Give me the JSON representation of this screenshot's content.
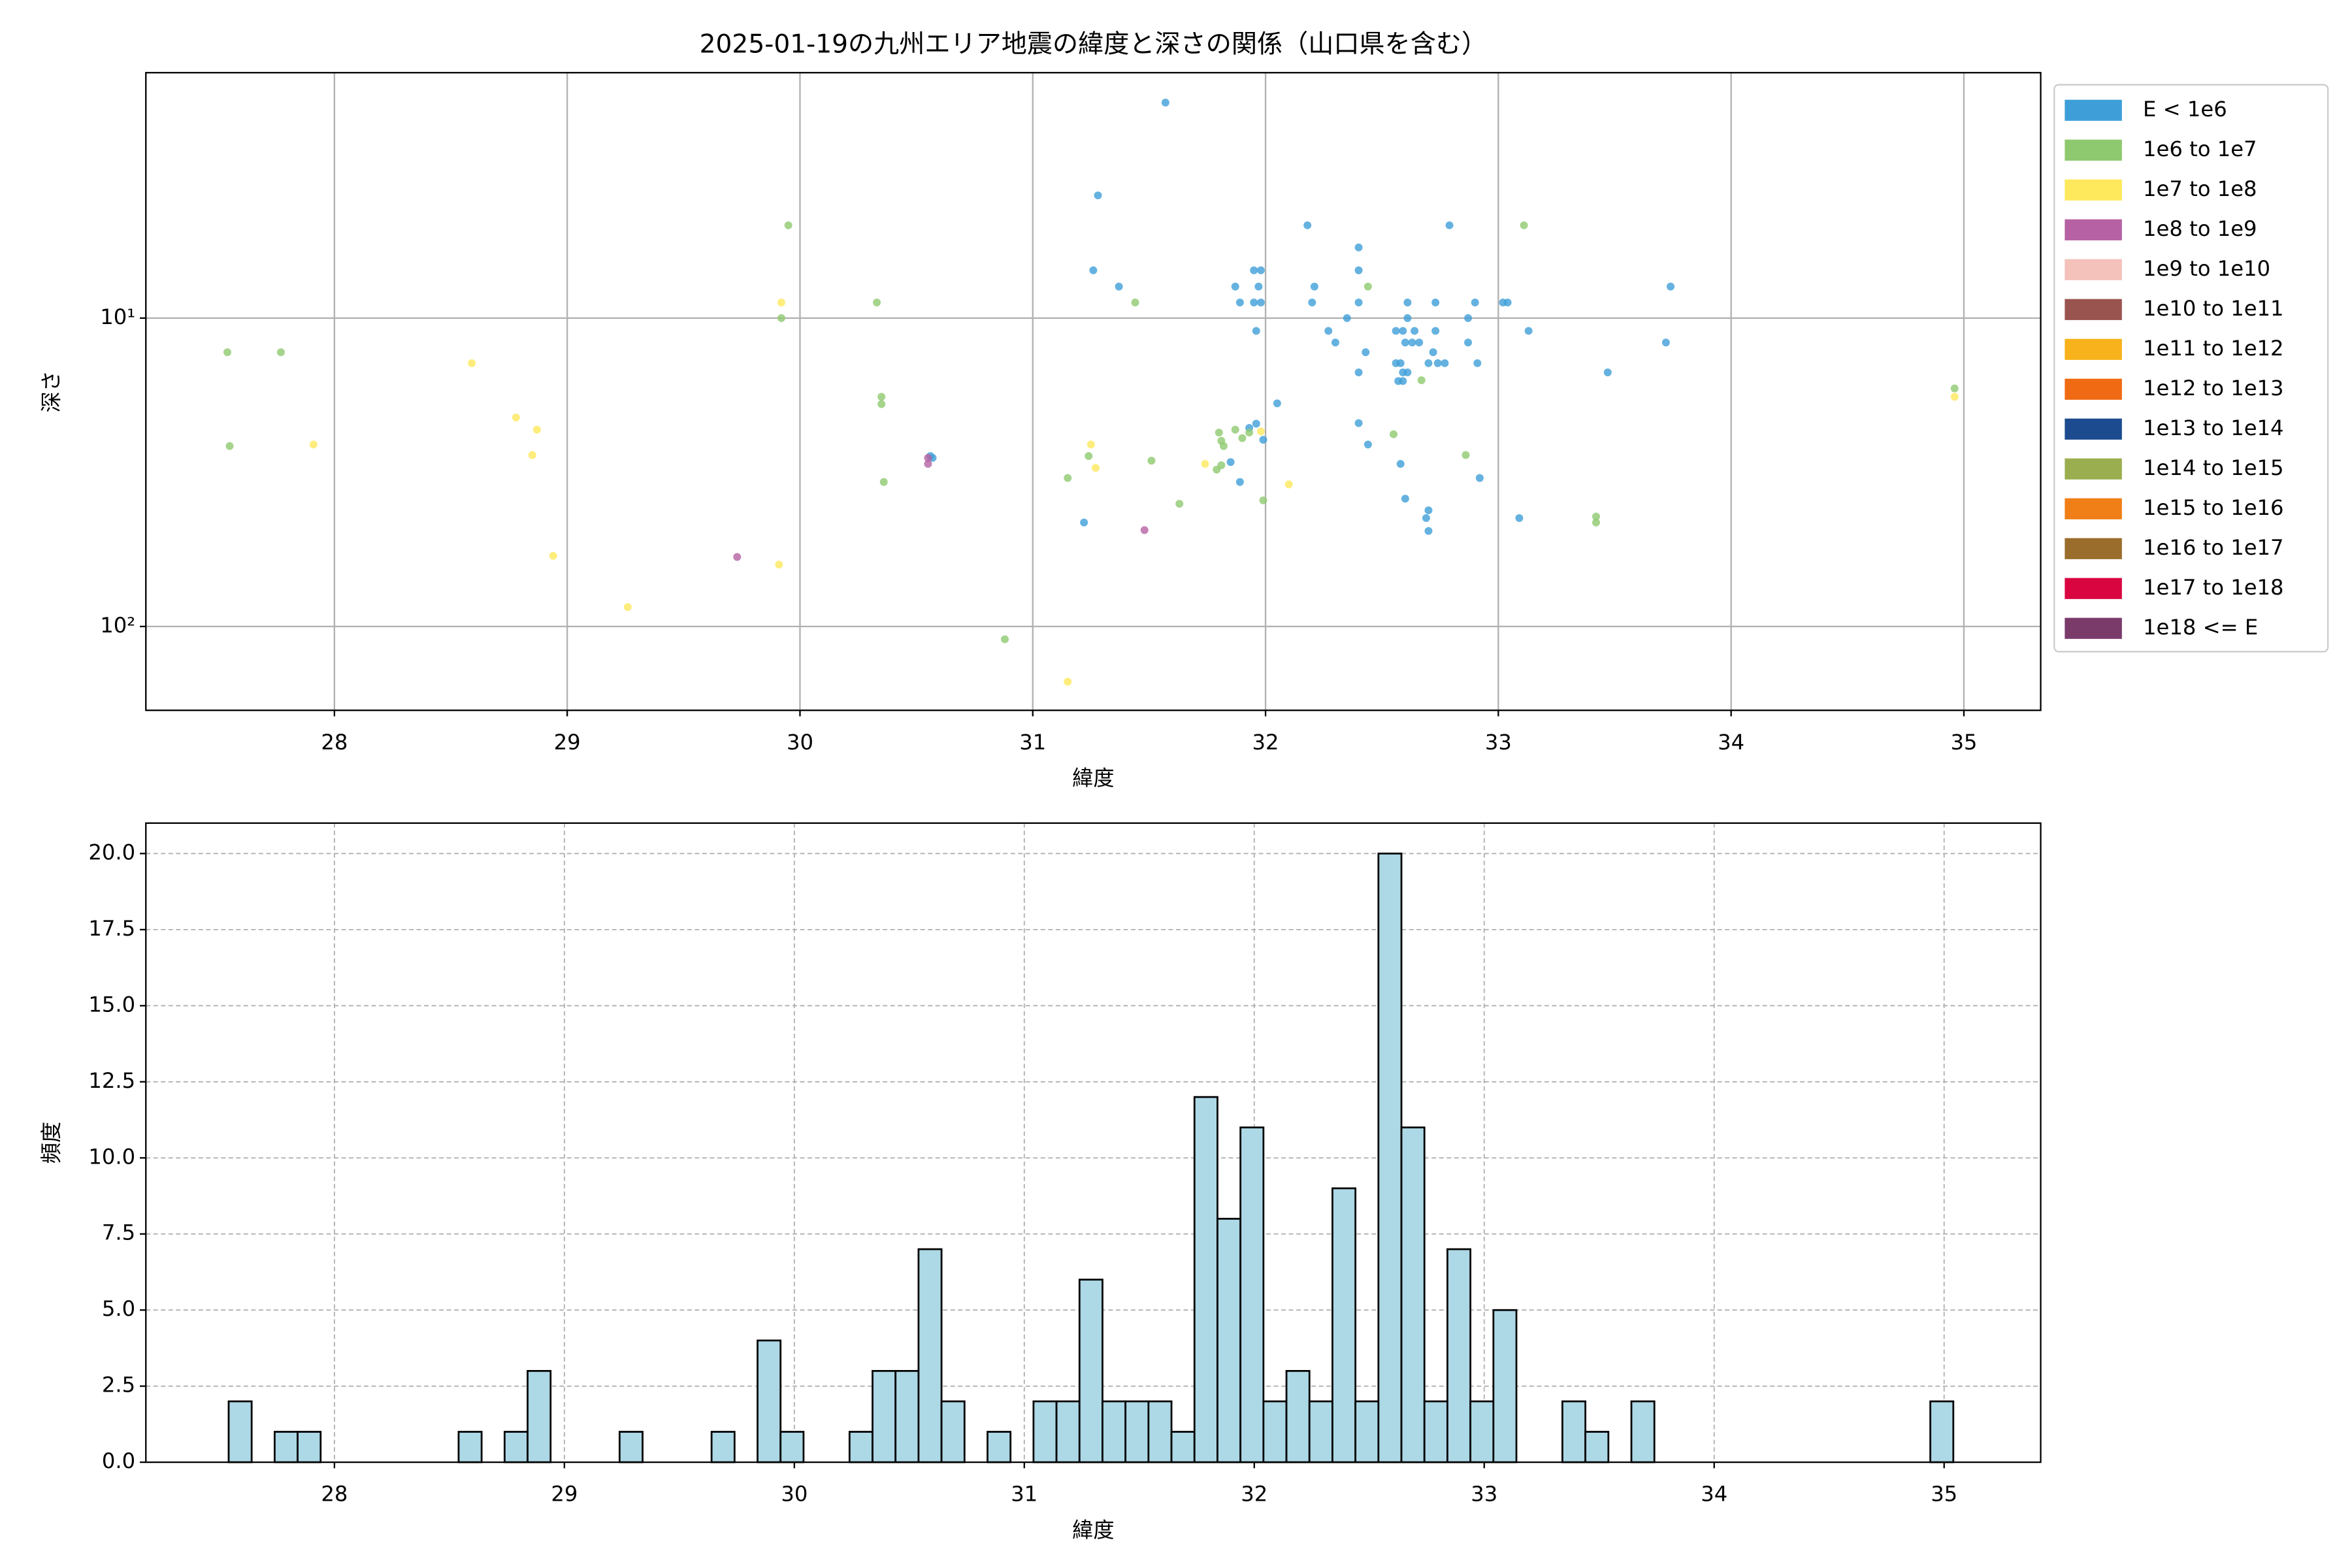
{
  "chart_data": [
    {
      "type": "scatter",
      "title": "2025-01-19の九州エリア地震の緯度と深さの関係（山口県を含む）",
      "xlabel": "緯度",
      "ylabel": "深さ",
      "xlim": [
        27.19,
        35.33
      ],
      "xticks": [
        28,
        29,
        30,
        31,
        32,
        33,
        34,
        35
      ],
      "yscale": "log",
      "ylim": [
        187,
        1.6
      ],
      "yticks": [
        {
          "value": 10,
          "label": "10¹"
        },
        {
          "value": 100,
          "label": "10²"
        }
      ],
      "grid": true,
      "legend": "outside right",
      "series": [
        {
          "name": "E < 1e6",
          "color": "#3e9fd8",
          "x": [
            31.57,
            31.28,
            31.26,
            31.37,
            32.18,
            32.4,
            32.4,
            32.21,
            32.79,
            33.74,
            31.95,
            31.98,
            31.87,
            31.97,
            31.89,
            31.95,
            31.98,
            32.2,
            32.4,
            32.61,
            32.73,
            32.9,
            33.02,
            33.04,
            32.35,
            32.61,
            32.87,
            31.96,
            32.27,
            32.56,
            32.59,
            32.64,
            32.73,
            33.13,
            32.3,
            32.6,
            32.63,
            32.66,
            32.87,
            32.43,
            32.72,
            33.72,
            32.56,
            32.58,
            32.7,
            32.74,
            32.77,
            32.91,
            32.4,
            32.59,
            32.61,
            32.57,
            32.59,
            33.47,
            32.05,
            31.96,
            32.4,
            32.44,
            32.58,
            32.92,
            31.89,
            32.6,
            32.7,
            32.69,
            31.22,
            33.09,
            32.7,
            30.56,
            30.57,
            31.99,
            31.85,
            31.93
          ],
          "y": [
            2.0,
            4.0,
            7.0,
            7.9,
            5.0,
            5.9,
            7.0,
            7.9,
            5.0,
            7.9,
            7.0,
            7.0,
            7.9,
            7.9,
            8.9,
            8.9,
            8.9,
            8.9,
            8.9,
            8.9,
            8.9,
            8.9,
            8.9,
            8.9,
            10,
            10,
            10,
            11,
            11,
            11,
            11,
            11,
            11,
            11,
            12,
            12,
            12,
            12,
            12,
            12.9,
            12.9,
            12,
            14,
            14,
            14,
            14,
            14,
            14,
            15,
            15,
            15,
            16,
            16,
            15,
            18.9,
            22,
            21.9,
            25.7,
            29.7,
            33,
            34,
            38.5,
            42,
            44.5,
            46,
            44.5,
            49,
            28,
            28.4,
            24.8,
            29.3,
            22.7
          ]
        },
        {
          "name": "1e6 to 1e7",
          "color": "#8fc96f",
          "x": [
            27.54,
            27.55,
            27.77,
            29.95,
            29.92,
            30.33,
            30.35,
            30.35,
            30.36,
            30.88,
            31.15,
            31.24,
            31.44,
            31.51,
            31.63,
            31.79,
            31.8,
            31.81,
            31.82,
            31.81,
            31.87,
            31.9,
            31.93,
            31.99,
            32.44,
            32.55,
            32.67,
            32.86,
            33.11,
            33.42,
            33.42,
            34.96
          ],
          "y": [
            12.9,
            26,
            12.9,
            5.0,
            10,
            8.9,
            18,
            19,
            34,
            110,
            33,
            28,
            8.9,
            29,
            40,
            31,
            23.5,
            25,
            26,
            30,
            23,
            24.5,
            23.5,
            39,
            7.9,
            23.8,
            15.9,
            27.8,
            5.0,
            44,
            46,
            16.9
          ]
        },
        {
          "name": "1e7 to 1e8",
          "color": "#fee95c",
          "x": [
            27.91,
            28.59,
            28.78,
            28.87,
            28.85,
            28.94,
            29.26,
            29.92,
            29.91,
            31.15,
            31.25,
            31.27,
            31.74,
            31.98,
            32.1,
            34.96
          ],
          "y": [
            25.7,
            14.0,
            21,
            23,
            27.8,
            59,
            86.5,
            8.9,
            63,
            151,
            25.7,
            30.6,
            29.7,
            23.3,
            34.6,
            18
          ]
        },
        {
          "name": "1e8 to 1e9",
          "color": "#b561a3",
          "x": [
            29.73,
            30.55,
            30.55,
            31.48
          ],
          "y": [
            59.5,
            29.7,
            28.4,
            48.7
          ]
        },
        {
          "name": "1e9 to 1e10",
          "color": "#f5c1bb",
          "x": [],
          "y": []
        },
        {
          "name": "1e10 to 1e11",
          "color": "#9a544f",
          "x": [],
          "y": []
        },
        {
          "name": "1e11 to 1e12",
          "color": "#f8b21b",
          "x": [],
          "y": []
        },
        {
          "name": "1e12 to 1e13",
          "color": "#ef6a12",
          "x": [],
          "y": []
        },
        {
          "name": "1e13 to 1e14",
          "color": "#1c4b8f",
          "x": [],
          "y": []
        },
        {
          "name": "1e14 to 1e15",
          "color": "#9aae4f",
          "x": [],
          "y": []
        },
        {
          "name": "1e15 to 1e16",
          "color": "#f07f17",
          "x": [],
          "y": []
        },
        {
          "name": "1e16 to 1e17",
          "color": "#9a6d2c",
          "x": [],
          "y": []
        },
        {
          "name": "1e17 to 1e18",
          "color": "#d90541",
          "x": [],
          "y": []
        },
        {
          "name": "1e18 <= E",
          "color": "#7a3b6b",
          "x": [],
          "y": []
        }
      ]
    },
    {
      "type": "histogram",
      "xlabel": "緯度",
      "ylabel": "頻度",
      "color": "#add8e6",
      "xlim": [
        27.18,
        35.42
      ],
      "xticks": [
        28,
        29,
        30,
        31,
        32,
        33,
        34,
        35
      ],
      "ylim": [
        0,
        21
      ],
      "yticks": [
        {
          "value": 0,
          "label": "0.0"
        },
        2.5,
        {
          "value": 5,
          "label": "5.0"
        },
        7.5,
        {
          "value": 10,
          "label": "10.0"
        },
        12.5,
        {
          "value": 15,
          "label": "15.0"
        },
        17.5,
        {
          "value": 20,
          "label": "20.0"
        }
      ],
      "grid": true,
      "bins": [
        27.54,
        27.64,
        27.74,
        27.84,
        27.94,
        28.04,
        28.14,
        28.24,
        28.34,
        28.44,
        28.54,
        28.64,
        28.74,
        28.84,
        28.94,
        29.04,
        29.14,
        29.24,
        29.34,
        29.44,
        29.54,
        29.64,
        29.74,
        29.84,
        29.94,
        30.04,
        30.14,
        30.24,
        30.34,
        30.44,
        30.54,
        30.64,
        30.74,
        30.84,
        30.94,
        31.04,
        31.14,
        31.24,
        31.34,
        31.44,
        31.54,
        31.64,
        31.74,
        31.84,
        31.94,
        32.04,
        32.14,
        32.24,
        32.34,
        32.44,
        32.54,
        32.64,
        32.74,
        32.84,
        32.94,
        33.04,
        33.14,
        33.24,
        33.34,
        33.44,
        33.54,
        33.64,
        33.74,
        33.84,
        33.94,
        34.04,
        34.14,
        34.24,
        34.34,
        34.44,
        34.54,
        34.64,
        34.74,
        34.84,
        34.94,
        35.04
      ],
      "counts": [
        2,
        0,
        1,
        1,
        0,
        0,
        0,
        0,
        0,
        0,
        1,
        0,
        1,
        3,
        0,
        0,
        0,
        1,
        0,
        0,
        0,
        1,
        0,
        4,
        1,
        0,
        0,
        1,
        3,
        3,
        7,
        2,
        0,
        1,
        0,
        2,
        2,
        6,
        2,
        2,
        2,
        1,
        12,
        8,
        11,
        2,
        3,
        2,
        9,
        2,
        20,
        11,
        2,
        7,
        2,
        5,
        0,
        0,
        2,
        1,
        0,
        2,
        0,
        0,
        0,
        0,
        0,
        0,
        0,
        0,
        0,
        0,
        0,
        0,
        2
      ]
    }
  ]
}
